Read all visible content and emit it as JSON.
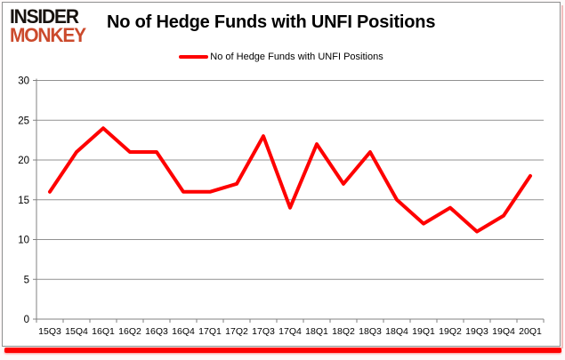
{
  "branding": {
    "logo_line1": "INSIDER",
    "logo_line2": "MONKEY",
    "logo_color_primary": "#17120e",
    "logo_color_secondary": "#cb4a2c"
  },
  "header": {
    "title": "No of Hedge Funds with UNFI Positions"
  },
  "legend": {
    "label": "No of Hedge Funds with UNFI Positions",
    "marker_color": "#fe0000"
  },
  "chart_data": {
    "type": "line",
    "title": "No of Hedge Funds with UNFI Positions",
    "categories": [
      "15Q3",
      "15Q4",
      "16Q1",
      "16Q2",
      "16Q3",
      "16Q4",
      "17Q1",
      "17Q2",
      "17Q3",
      "17Q4",
      "18Q1",
      "18Q2",
      "18Q3",
      "18Q4",
      "19Q1",
      "19Q2",
      "19Q3",
      "19Q4",
      "20Q1"
    ],
    "series": [
      {
        "name": "No of Hedge Funds with UNFI Positions",
        "color": "#fe0000",
        "values": [
          16,
          21,
          24,
          21,
          21,
          16,
          16,
          17,
          23,
          14,
          22,
          17,
          21,
          15,
          12,
          14,
          11,
          13,
          18
        ]
      }
    ],
    "xlabel": "",
    "ylabel": "",
    "ylim": [
      0,
      30
    ],
    "ytick_step": 5,
    "grid": true,
    "legend_position": "top-center"
  },
  "colors": {
    "gridline": "#919191",
    "axis": "#808080",
    "tick_label": "#000000",
    "frame_border": "#8f8f8f",
    "bottom_bar": "#fe0000",
    "right_shadow": "#f3bcbc"
  }
}
